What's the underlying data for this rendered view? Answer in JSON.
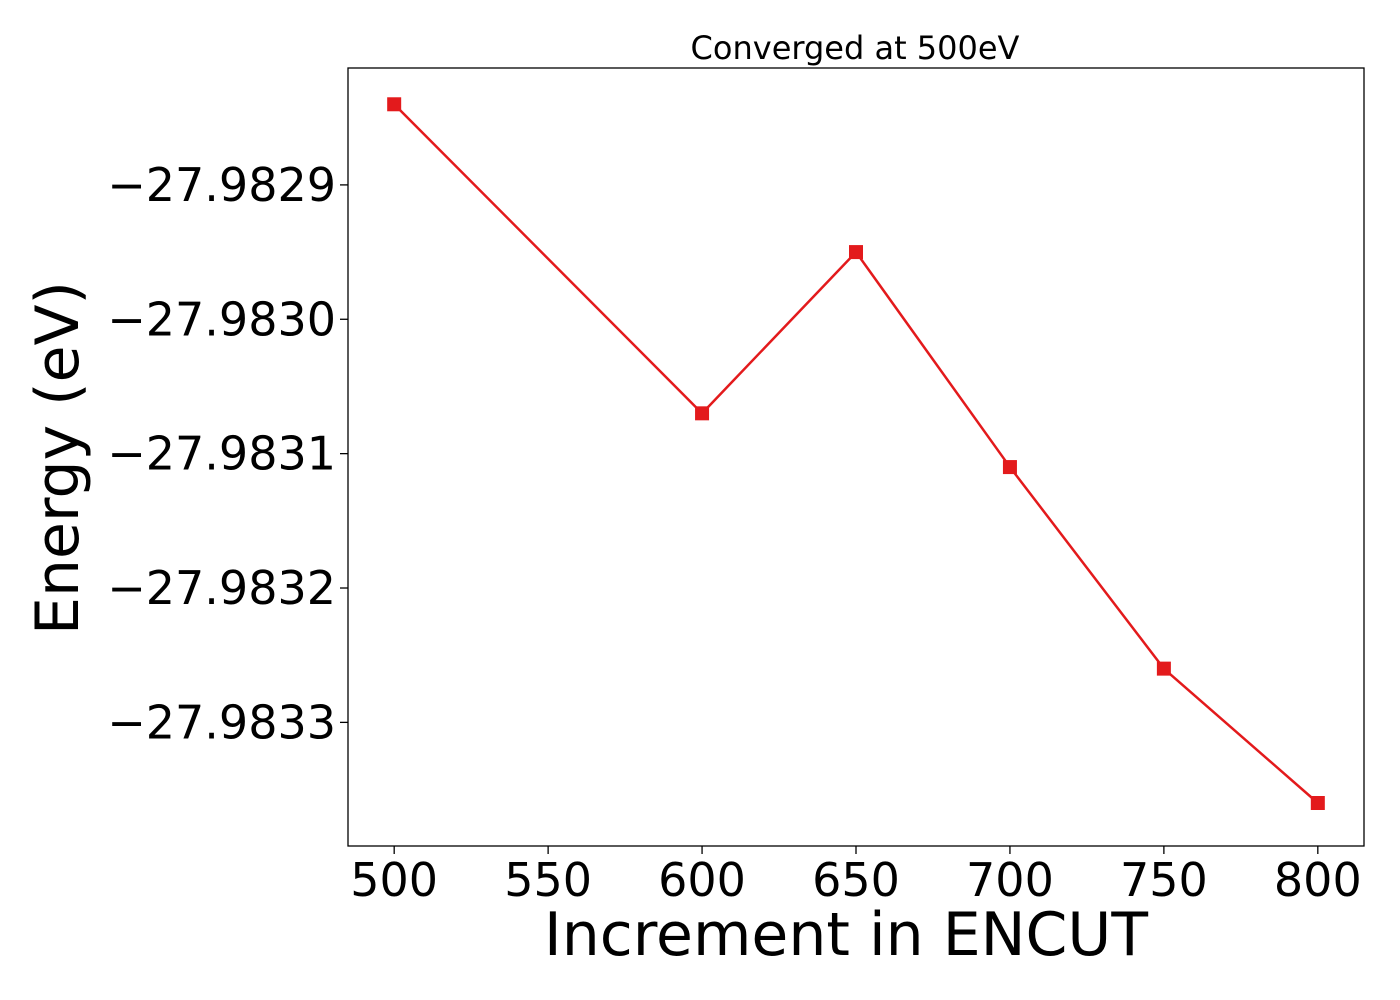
{
  "chart_data": {
    "type": "line",
    "title": "Converged at 500eV",
    "xlabel": "Increment in ENCUT",
    "ylabel": "Energy (eV)",
    "x": [
      500,
      600,
      650,
      700,
      750,
      800
    ],
    "series": [
      {
        "values": [
          -27.98284,
          -27.98307,
          -27.98295,
          -27.98311,
          -27.98326,
          -27.98336
        ],
        "color": "#e31a1c",
        "marker": "square"
      }
    ],
    "xlim": [
      485,
      815
    ],
    "ylim": [
      -27.983392,
      -27.982813
    ],
    "xticks": [
      500,
      550,
      600,
      650,
      700,
      750,
      800
    ],
    "yticks": [
      -27.9829,
      -27.983,
      -27.9831,
      -27.9832,
      -27.9833
    ],
    "yticklabels": [
      "−27.9829",
      "−27.9830",
      "−27.9831",
      "−27.9832",
      "−27.9833"
    ],
    "grid": false,
    "legend": "none"
  }
}
